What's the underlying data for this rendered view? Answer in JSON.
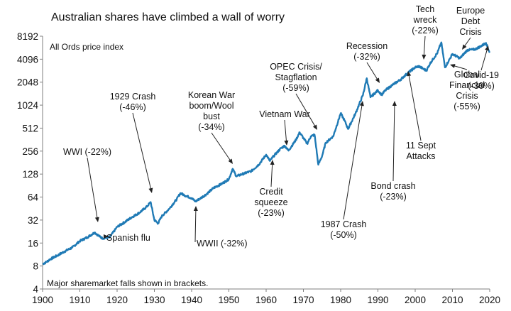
{
  "chart_data": {
    "type": "line",
    "title": "Australian shares have climbed a wall of worry",
    "subtitle": "All Ords price index",
    "footnote": "Major sharemarket falls shown in brackets.",
    "y_scale": "log2",
    "ylim": [
      4,
      8192
    ],
    "xlim": [
      1900,
      2020
    ],
    "x_ticks": [
      "1900",
      "1910",
      "1920",
      "1930",
      "1940",
      "1950",
      "1960",
      "1970",
      "1980",
      "1990",
      "2000",
      "2010",
      "2020"
    ],
    "y_ticks": [
      "8192",
      "4096",
      "2048",
      "1024",
      "512",
      "256",
      "128",
      "64",
      "32",
      "16",
      "8",
      "4"
    ],
    "series_color": "#1f7ab5",
    "series": [
      {
        "x": [
          1900,
          1901,
          1902,
          1904,
          1906,
          1908,
          1910,
          1912,
          1914,
          1915,
          1916,
          1918,
          1920,
          1922,
          1924,
          1926,
          1928,
          1929,
          1930,
          1931,
          1932,
          1934,
          1936,
          1937,
          1938,
          1940,
          1941,
          1942,
          1944,
          1946,
          1948,
          1950,
          1951,
          1952,
          1954,
          1956,
          1958,
          1960,
          1961,
          1962,
          1964,
          1965,
          1966,
          1968,
          1969,
          1970,
          1971,
          1972,
          1973,
          1974,
          1975,
          1976,
          1978,
          1980,
          1981,
          1982,
          1984,
          1986,
          1987,
          1988,
          1990,
          1991,
          1992,
          1994,
          1996,
          1998,
          2000,
          2001,
          2002,
          2003,
          2004,
          2006,
          2007,
          2008,
          2009,
          2010,
          2012,
          2014,
          2016,
          2018,
          2019,
          2020
        ],
        "y": [
          8.5,
          9,
          9.8,
          11,
          12.5,
          14,
          17,
          19,
          22,
          20,
          18.5,
          19,
          26,
          30,
          35,
          40,
          48,
          55,
          32,
          29,
          36,
          45,
          60,
          72,
          68,
          62,
          56,
          60,
          70,
          85,
          95,
          110,
          150,
          120,
          130,
          140,
          170,
          230,
          190,
          220,
          280,
          300,
          260,
          360,
          450,
          380,
          320,
          400,
          420,
          170,
          220,
          330,
          400,
          800,
          650,
          500,
          800,
          1400,
          2300,
          1300,
          1600,
          1400,
          1600,
          1900,
          2200,
          2700,
          3200,
          3300,
          3100,
          2900,
          3600,
          5000,
          6800,
          3200,
          3900,
          4800,
          4200,
          5400,
          5500,
          6200,
          6700,
          5000
        ]
      }
    ],
    "annotations": [
      {
        "lines": [
          "WWI (-22%)"
        ],
        "x": 1915,
        "y": 20
      },
      {
        "lines": [
          "Spanish flu"
        ],
        "x": 1918,
        "y": 17
      },
      {
        "lines": [
          "1929 Crash",
          "(-46%)"
        ],
        "x": 1929,
        "y": 55
      },
      {
        "lines": [
          "WWII (-32%)"
        ],
        "x": 1941,
        "y": 50
      },
      {
        "lines": [
          "Korean War",
          "boom/Wool",
          "bust",
          "(-34%)"
        ],
        "x": 1951,
        "y": 140
      },
      {
        "lines": [
          "Credit",
          "squeeze",
          "(-23%)"
        ],
        "x": 1961,
        "y": 195
      },
      {
        "lines": [
          "Vietnam War"
        ],
        "x": 1966,
        "y": 300
      },
      {
        "lines": [
          "OPEC Crisis/",
          "Stagflation",
          "(-59%)"
        ],
        "x": 1974,
        "y": 400
      },
      {
        "lines": [
          "1987 Crash",
          "(-50%)"
        ],
        "x": 1987,
        "y": 1300
      },
      {
        "lines": [
          "Recession",
          "(-32%)"
        ],
        "x": 1991,
        "y": 1400
      },
      {
        "lines": [
          "Bond crash",
          "(-23%)"
        ],
        "x": 1994,
        "y": 1900
      },
      {
        "lines": [
          "11 Sept",
          "Attacks"
        ],
        "x": 2001,
        "y": 3300
      },
      {
        "lines": [
          "Tech",
          "wreck",
          "(-22%)"
        ],
        "x": 2003,
        "y": 3200
      },
      {
        "lines": [
          "Global",
          "Financial",
          "Crisis",
          "(-55%)"
        ],
        "x": 2009,
        "y": 3200
      },
      {
        "lines": [
          "Europe",
          "Debt",
          "Crisis"
        ],
        "x": 2011,
        "y": 4300
      },
      {
        "lines": [
          "Covid-19",
          "(-30%)"
        ],
        "x": 2020,
        "y": 5000
      }
    ]
  }
}
